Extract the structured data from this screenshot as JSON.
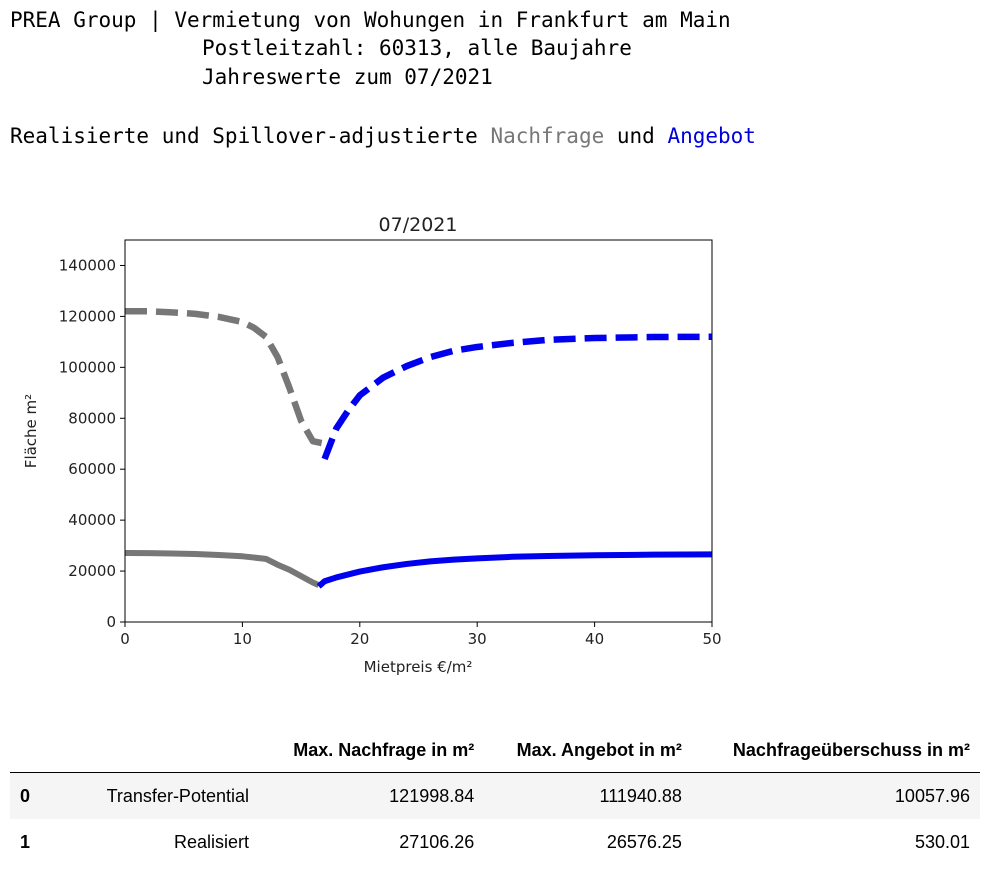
{
  "header": {
    "line1_prefix": "PREA Group | ",
    "line1": "Vermietung von Wohungen in Frankfurt am Main",
    "line2": "Postleitzahl: 60313, alle Baujahre",
    "line3": "Jahreswerte zum 07/2021"
  },
  "subtitle": {
    "prefix": "Realisierte und Spillover-adjustierte ",
    "demand_word": "Nachfrage",
    "middle": " und ",
    "supply_word": "Angebot"
  },
  "chart_data": {
    "type": "line",
    "title": "07/2021",
    "xlabel": "Mietpreis €/m²",
    "ylabel": "Fläche m²",
    "xlim": [
      0,
      50
    ],
    "ylim": [
      0,
      150000
    ],
    "xticks": [
      0,
      10,
      20,
      30,
      40,
      50
    ],
    "yticks": [
      0,
      20000,
      40000,
      60000,
      80000,
      100000,
      120000,
      140000
    ],
    "colors": {
      "demand": "#777777",
      "supply": "#0000ee"
    },
    "series": [
      {
        "role": "demand",
        "style": "dashed",
        "x": [
          0,
          2,
          4,
          6,
          8,
          10,
          11,
          12,
          13,
          14,
          15,
          16,
          17
        ],
        "y": [
          122000,
          122000,
          121600,
          121000,
          119800,
          117800,
          115500,
          112000,
          104000,
          92000,
          79000,
          71000,
          70000
        ]
      },
      {
        "role": "supply",
        "style": "dashed",
        "x": [
          17,
          18,
          19,
          20,
          22,
          24,
          26,
          28,
          30,
          33,
          36,
          40,
          45,
          50
        ],
        "y": [
          64000,
          76000,
          83000,
          89000,
          96000,
          100500,
          104000,
          106500,
          108000,
          109600,
          110800,
          111500,
          111900,
          112000
        ]
      },
      {
        "role": "demand",
        "style": "solid",
        "x": [
          0,
          2,
          4,
          6,
          8,
          10,
          12,
          13,
          14,
          15,
          16,
          16.5
        ],
        "y": [
          27106,
          27050,
          26900,
          26700,
          26300,
          25800,
          24800,
          22500,
          20500,
          18000,
          15500,
          14500
        ]
      },
      {
        "role": "supply",
        "style": "solid",
        "x": [
          16.5,
          17,
          18,
          20,
          22,
          24,
          26,
          28,
          30,
          33,
          36,
          40,
          45,
          50
        ],
        "y": [
          14000,
          16000,
          17500,
          19800,
          21500,
          22800,
          23800,
          24500,
          25000,
          25600,
          25900,
          26200,
          26450,
          26576
        ]
      }
    ]
  },
  "table": {
    "columns": [
      "",
      "",
      "Max. Nachfrage in m²",
      "Max. Angebot in m²",
      "Nachfrageüberschuss in m²"
    ],
    "rows": [
      [
        "0",
        "Transfer-Potential",
        "121998.84",
        "111940.88",
        "10057.96"
      ],
      [
        "1",
        "Realisiert",
        "27106.26",
        "26576.25",
        "530.01"
      ]
    ]
  }
}
